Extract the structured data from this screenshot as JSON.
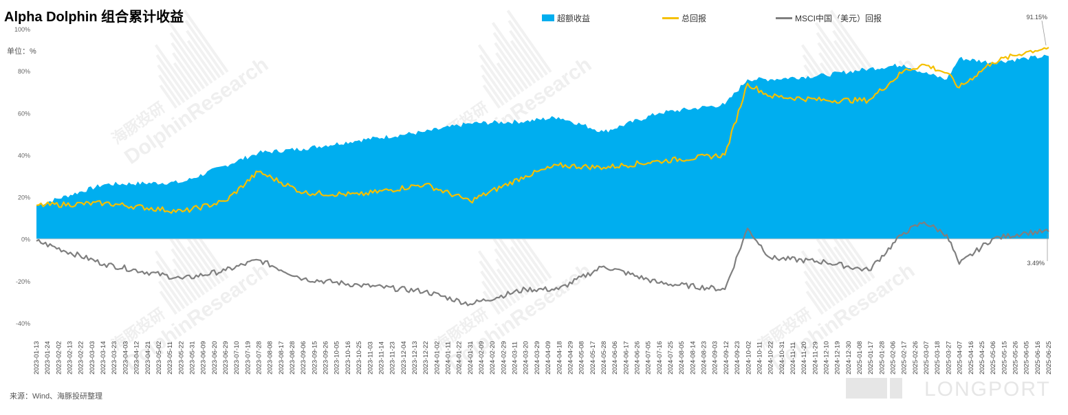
{
  "title": "Alpha Dolphin 组合累计收益",
  "unit": "单位：%",
  "source": "来源：Wind、海豚投研整理",
  "watermark": {
    "brand": "DolphinResearch",
    "cn": "海豚投研"
  },
  "logo_text": "LONGPORT",
  "colors": {
    "excess": "#00AEEF",
    "total": "#F5C000",
    "msci": "#7F7F7F",
    "zero_line": "#C8C8C8"
  },
  "chart_data": {
    "type": "area",
    "title": "Alpha Dolphin 组合累计收益",
    "ylabel": "单位：%",
    "ylim": [
      -40,
      100
    ],
    "y_ticks": [
      "-40%",
      "-20%",
      "0%",
      "20%",
      "40%",
      "60%",
      "80%",
      "100%"
    ],
    "legend_position": "top",
    "legend": [
      "超额收益",
      "总回报",
      "MSCI中国（美元）回报"
    ],
    "x_tick_labels": [
      "2023-01-13",
      "2023-01-24",
      "2023-02-02",
      "2023-02-13",
      "2023-02-22",
      "2023-03-03",
      "2023-03-14",
      "2023-03-23",
      "2023-04-03",
      "2023-04-12",
      "2023-04-21",
      "2023-05-02",
      "2023-05-11",
      "2023-05-22",
      "2023-05-31",
      "2023-06-09",
      "2023-06-20",
      "2023-06-29",
      "2023-07-10",
      "2023-07-19",
      "2023-07-28",
      "2023-08-08",
      "2023-08-17",
      "2023-08-28",
      "2023-09-06",
      "2023-09-15",
      "2023-09-26",
      "2023-10-05",
      "2023-10-16",
      "2023-10-25",
      "2023-11-03",
      "2023-11-14",
      "2023-11-23",
      "2023-12-04",
      "2023-12-13",
      "2023-12-22",
      "2024-01-02",
      "2024-01-11",
      "2024-01-22",
      "2024-01-31",
      "2024-02-09",
      "2024-02-20",
      "2024-02-29",
      "2024-03-11",
      "2024-03-20",
      "2024-03-29",
      "2024-04-09",
      "2024-04-18",
      "2024-04-29",
      "2024-05-08",
      "2024-05-17",
      "2024-05-28",
      "2024-06-06",
      "2024-06-17",
      "2024-06-26",
      "2024-07-05",
      "2024-07-16",
      "2024-07-25",
      "2024-08-05",
      "2024-08-14",
      "2024-08-23",
      "2024-09-03",
      "2024-09-12",
      "2024-09-23",
      "2024-10-02",
      "2024-10-11",
      "2024-10-22",
      "2024-10-31",
      "2024-11-11",
      "2024-11-20",
      "2024-11-29",
      "2024-12-10",
      "2024-12-19",
      "2024-12-30",
      "2025-01-08",
      "2025-01-17",
      "2025-01-28",
      "2025-02-06",
      "2025-02-17",
      "2025-02-26",
      "2025-03-07",
      "2025-03-18",
      "2025-03-27",
      "2025-04-07",
      "2025-04-16",
      "2025-04-25",
      "2025-05-06",
      "2025-05-15",
      "2025-05-26",
      "2025-06-05",
      "2025-06-16",
      "2025-06-25"
    ],
    "x": [
      "2023-01-13",
      "2023-03-14",
      "2023-05-22",
      "2023-06-29",
      "2023-07-28",
      "2023-09-06",
      "2023-10-25",
      "2023-12-22",
      "2024-01-31",
      "2024-03-20",
      "2024-04-18",
      "2024-05-28",
      "2024-07-16",
      "2024-09-12",
      "2024-10-02",
      "2024-10-22",
      "2024-12-10",
      "2025-01-17",
      "2025-02-17",
      "2025-03-07",
      "2025-03-27",
      "2025-04-07",
      "2025-05-06",
      "2025-06-05",
      "2025-06-25"
    ],
    "series": [
      {
        "name": "超额收益",
        "values": [
          16,
          26,
          27,
          35,
          41,
          43,
          47,
          51,
          55,
          56,
          58,
          51,
          60,
          64,
          76,
          76,
          78,
          81,
          83,
          79,
          76,
          86,
          84,
          86,
          87
        ]
      },
      {
        "name": "总回报",
        "values": [
          16,
          17,
          13,
          18,
          32,
          22,
          21,
          26,
          18,
          30,
          35,
          34,
          37,
          40,
          74,
          68,
          66,
          66,
          80,
          83,
          79,
          72,
          84,
          89,
          91.15
        ]
      },
      {
        "name": "MSCI中国（美元）回报",
        "values": [
          -1,
          -12,
          -19,
          -15,
          -10,
          -19,
          -22,
          -25,
          -31,
          -24,
          -24,
          -13,
          -21,
          -24,
          5,
          -9,
          -11,
          -15,
          3,
          8,
          2,
          -12,
          0,
          3,
          3.49
        ]
      }
    ],
    "annotations": [
      {
        "series": "总回报",
        "text": "91.15%"
      },
      {
        "series": "MSCI中国（美元）回报",
        "text": "3.49%"
      }
    ]
  }
}
